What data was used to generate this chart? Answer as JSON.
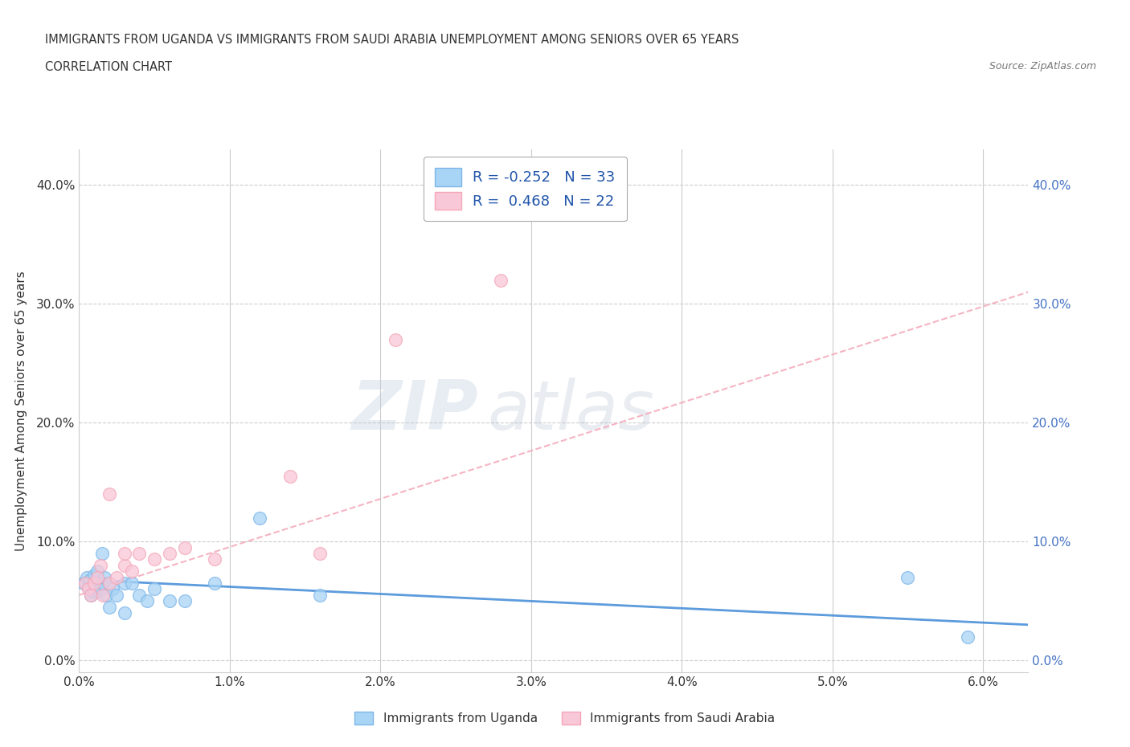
{
  "title_line1": "IMMIGRANTS FROM UGANDA VS IMMIGRANTS FROM SAUDI ARABIA UNEMPLOYMENT AMONG SENIORS OVER 65 YEARS",
  "title_line2": "CORRELATION CHART",
  "source_text": "Source: ZipAtlas.com",
  "ylabel": "Unemployment Among Seniors over 65 years",
  "xlim": [
    0.0,
    0.063
  ],
  "ylim": [
    -0.01,
    0.43
  ],
  "xtick_labels": [
    "0.0%",
    "1.0%",
    "2.0%",
    "3.0%",
    "4.0%",
    "5.0%",
    "6.0%"
  ],
  "xtick_vals": [
    0.0,
    0.01,
    0.02,
    0.03,
    0.04,
    0.05,
    0.06
  ],
  "ytick_labels": [
    "0.0%",
    "10.0%",
    "20.0%",
    "30.0%",
    "40.0%"
  ],
  "ytick_vals": [
    0.0,
    0.1,
    0.2,
    0.3,
    0.4
  ],
  "color_uganda": "#7EB6E8",
  "color_saudi": "#F4A7B9",
  "legend_r_uganda": "R = -0.252",
  "legend_n_uganda": "N = 33",
  "legend_r_saudi": "R =  0.468",
  "legend_n_saudi": "N = 22",
  "label_uganda": "Immigrants from Uganda",
  "label_saudi": "Immigrants from Saudi Arabia",
  "watermark_zip": "ZIP",
  "watermark_atlas": "atlas",
  "uganda_x": [
    0.0003,
    0.0005,
    0.0006,
    0.0007,
    0.0008,
    0.0009,
    0.001,
    0.001,
    0.0011,
    0.0012,
    0.0013,
    0.0014,
    0.0015,
    0.0016,
    0.0017,
    0.0018,
    0.002,
    0.002,
    0.0022,
    0.0025,
    0.003,
    0.003,
    0.0035,
    0.004,
    0.0045,
    0.005,
    0.006,
    0.007,
    0.009,
    0.012,
    0.016,
    0.055,
    0.059
  ],
  "uganda_y": [
    0.065,
    0.07,
    0.062,
    0.068,
    0.055,
    0.058,
    0.072,
    0.06,
    0.065,
    0.075,
    0.058,
    0.06,
    0.09,
    0.065,
    0.07,
    0.055,
    0.065,
    0.045,
    0.06,
    0.055,
    0.065,
    0.04,
    0.065,
    0.055,
    0.05,
    0.06,
    0.05,
    0.05,
    0.065,
    0.12,
    0.055,
    0.07,
    0.02
  ],
  "saudi_x": [
    0.0004,
    0.0006,
    0.0008,
    0.001,
    0.0012,
    0.0014,
    0.0016,
    0.002,
    0.002,
    0.0025,
    0.003,
    0.003,
    0.0035,
    0.004,
    0.005,
    0.006,
    0.007,
    0.009,
    0.014,
    0.016,
    0.021,
    0.028
  ],
  "saudi_y": [
    0.065,
    0.06,
    0.055,
    0.065,
    0.07,
    0.08,
    0.055,
    0.065,
    0.14,
    0.07,
    0.08,
    0.09,
    0.075,
    0.09,
    0.085,
    0.09,
    0.095,
    0.085,
    0.155,
    0.09,
    0.27,
    0.32
  ],
  "uganda_line_x": [
    0.0,
    0.063
  ],
  "uganda_line_y": [
    0.068,
    0.03
  ],
  "saudi_line_x": [
    0.0,
    0.063
  ],
  "saudi_line_y": [
    0.055,
    0.31
  ],
  "background_color": "#FFFFFF"
}
